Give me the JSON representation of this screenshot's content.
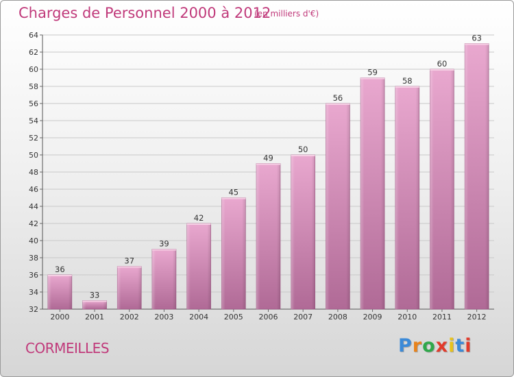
{
  "chart_data": {
    "type": "bar",
    "title": "Charges de Personnel 2000 à 2012",
    "subtitle": "(en milliers d'€)",
    "categories": [
      "2000",
      "2001",
      "2002",
      "2003",
      "2004",
      "2005",
      "2006",
      "2007",
      "2008",
      "2009",
      "2010",
      "2011",
      "2012"
    ],
    "values": [
      36,
      33,
      37,
      39,
      42,
      45,
      49,
      50,
      56,
      59,
      58,
      60,
      63
    ],
    "ylim": [
      32,
      64
    ],
    "yticks": [
      32,
      34,
      36,
      38,
      40,
      42,
      44,
      46,
      48,
      50,
      52,
      54,
      56,
      58,
      60,
      62,
      64
    ],
    "grid": true,
    "bar_color": "#c9709e"
  },
  "commune": "CORMEILLES",
  "logo": {
    "letters": [
      "P",
      "r",
      "o",
      "x",
      "i",
      "t",
      "i"
    ],
    "colors": [
      "#3b8ad8",
      "#e8831c",
      "#2fa84a",
      "#e23a2a",
      "#e8c21c",
      "#3b8ad8",
      "#e23a2a"
    ]
  }
}
